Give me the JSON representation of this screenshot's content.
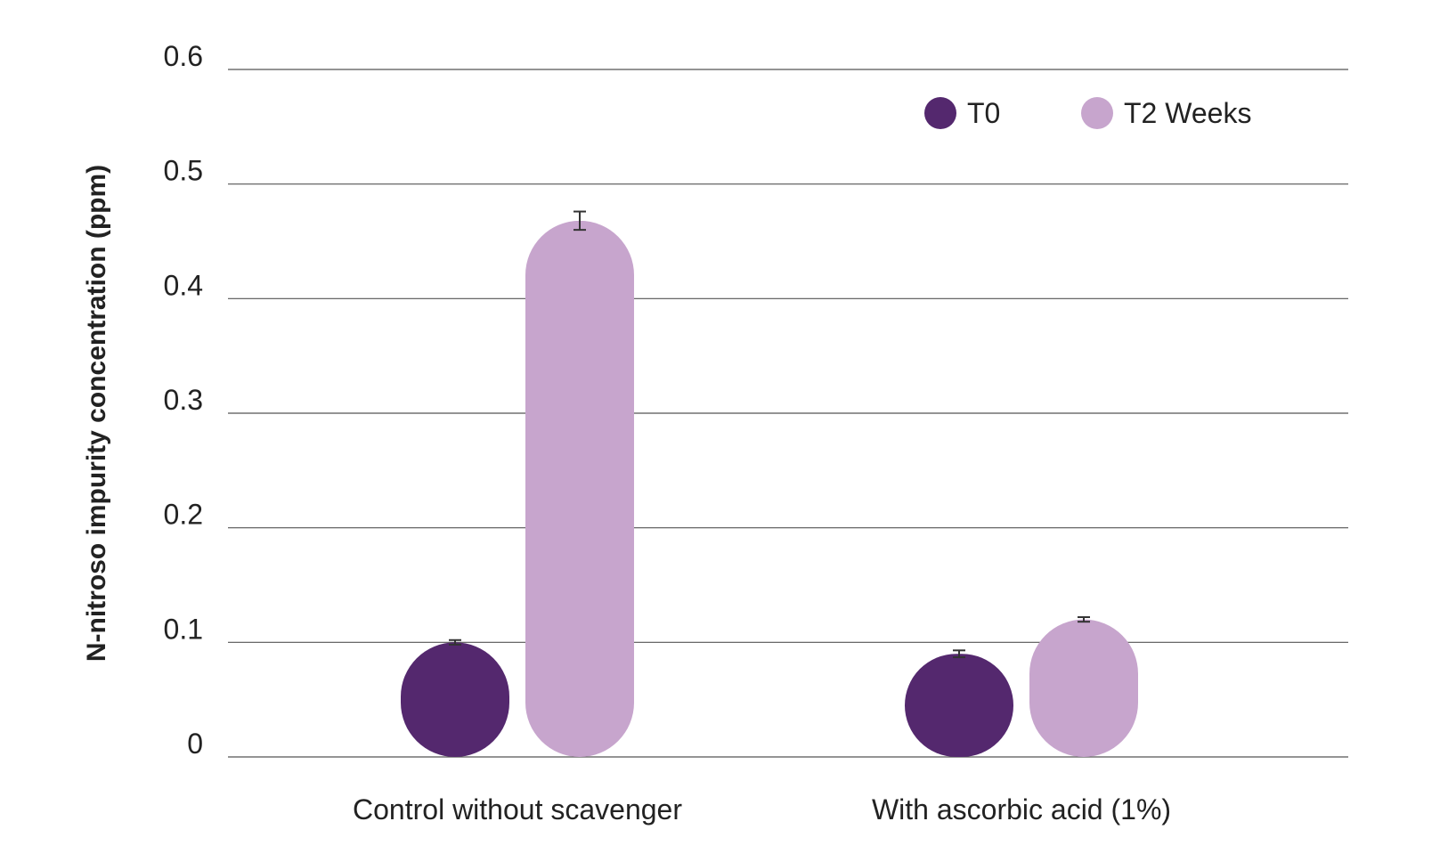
{
  "chart_data": {
    "type": "bar",
    "title": "",
    "xlabel": "",
    "ylabel": "N-nitroso impurity concentration (ppm)",
    "ylim": [
      0,
      0.6
    ],
    "yticks": [
      0,
      0.1,
      0.2,
      0.3,
      0.4,
      0.5,
      0.6
    ],
    "ytick_labels": [
      "0",
      "0.1",
      "0.2",
      "0.3",
      "0.4",
      "0.5",
      "0.6"
    ],
    "categories": [
      "Control without scavenger",
      "With ascorbic acid (1%)"
    ],
    "series": [
      {
        "name": "T0",
        "color": "#54286E",
        "values": [
          0.1,
          0.09
        ],
        "errors": [
          0.002,
          0.003
        ]
      },
      {
        "name": "T2 Weeks",
        "color": "#C7A5CD",
        "values": [
          0.468,
          0.12
        ],
        "errors": [
          0.008,
          0.002
        ]
      }
    ],
    "grid": true,
    "legend_position": "top-right",
    "bar_style": "rounded-pill",
    "colors": {
      "gridline": "#555555",
      "text": "#222222",
      "axis_title": "#222222",
      "error_bar": "#333333"
    }
  }
}
